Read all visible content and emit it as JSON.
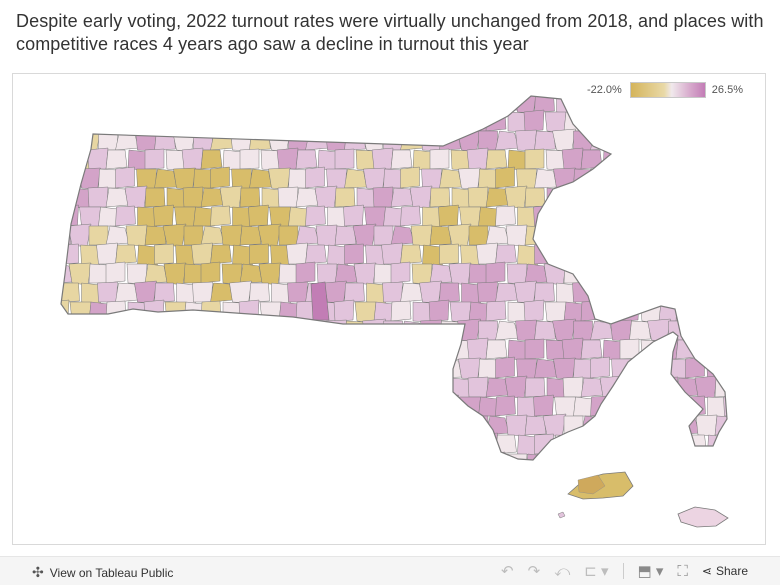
{
  "title": "Despite early voting, 2022 turnout rates were virtually unchanged from 2018, and places with competitive races 4 years ago saw a decline in turnout this year",
  "legend": {
    "min_label": "-22.0%",
    "max_label": "26.5%",
    "min_value": -22.0,
    "max_value": 26.5,
    "color_low": "#c9a94e",
    "color_mid": "#efe6ea",
    "color_high": "#c27db5"
  },
  "colors": {
    "declined": "#d8bd6a",
    "slight_decline": "#e7d6a2",
    "flat": "#f1e6ea",
    "slight_increase": "#e2c4dc",
    "increase": "#d3a3c8",
    "border": "#7a7a7a"
  },
  "toolbar": {
    "view_label": "View on Tableau Public",
    "view_icon": "tableau-logo-icon",
    "undo_icon": "undo-icon",
    "redo_icon": "redo-icon",
    "revert_icon": "revert-icon",
    "pause_icon": "pause-updates-icon",
    "download_icon": "download-icon",
    "fullscreen_icon": "fullscreen-icon",
    "share_icon": "share-icon",
    "share_label": "Share"
  }
}
